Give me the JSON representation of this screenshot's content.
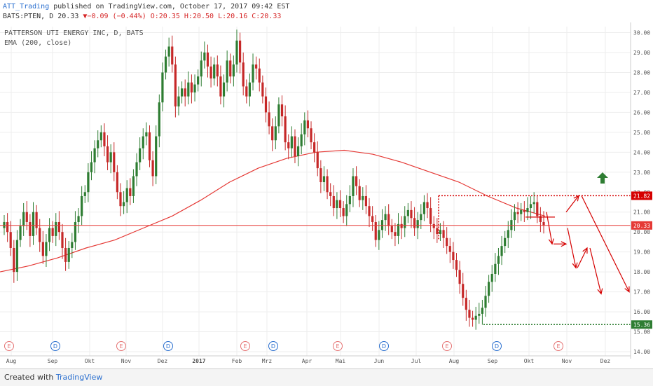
{
  "header": {
    "author": "ATT_Trading",
    "published": "published on TradingView.com, October 17, 2017 09:42 EST",
    "symbol_line": "BATS:PTEN, D 20.33",
    "change": "▼−0.09 (−0.44%)",
    "ohlc": "O:20.35 H:20.50 L:20.16 C:20.33"
  },
  "footer": {
    "created_with": "Created with",
    "brand": "TradingView"
  },
  "colors": {
    "up": "#2e7d32",
    "down": "#c62828",
    "ema": "#e53935",
    "grid": "#eeeeee",
    "annot": "#d50000",
    "arrow_up": "#2e7d32"
  },
  "chart_data": {
    "type": "candlestick",
    "title": "PATTERSON UTI ENERGY INC, D, BATS",
    "indicator": "EMA (200, close)",
    "x_labels": [
      "Aug",
      "Sep",
      "Okt",
      "Nov",
      "Dez",
      "2017",
      "Feb",
      "Mrz",
      "Apr",
      "Mai",
      "Jun",
      "Jul",
      "Aug",
      "Sep",
      "Okt",
      "Nov",
      "Dez"
    ],
    "y_ticks": [
      "30.00",
      "29.00",
      "28.00",
      "27.00",
      "26.00",
      "25.00",
      "24.00",
      "23.00",
      "22.00",
      "21.00",
      "20.00",
      "19.00",
      "18.00",
      "17.00",
      "16.00",
      "15.00",
      "14.00"
    ],
    "ylim": [
      14,
      30.3
    ],
    "price_labels": {
      "resistance": "21.82",
      "last": "20.33",
      "support": "15.36"
    },
    "levels": {
      "resistance": 21.82,
      "last": 20.33,
      "support": 15.36
    },
    "closes": [
      20.5,
      20.0,
      19.2,
      18.0,
      19.6,
      20.3,
      21.0,
      20.5,
      19.8,
      21.0,
      20.2,
      19.5,
      18.8,
      19.5,
      20.2,
      19.8,
      20.5,
      20.0,
      19.2,
      18.5,
      19.2,
      19.5,
      20.5,
      20.8,
      21.8,
      22.0,
      23.0,
      23.5,
      24.2,
      24.6,
      25.0,
      24.3,
      23.5,
      24.0,
      23.0,
      22.0,
      21.3,
      21.5,
      22.2,
      21.8,
      22.8,
      23.5,
      24.2,
      24.8,
      25.0,
      23.6,
      22.8,
      24.8,
      26.5,
      28.0,
      28.8,
      29.3,
      28.4,
      26.3,
      26.8,
      27.2,
      26.8,
      27.5,
      27.0,
      27.4,
      27.8,
      28.6,
      29.0,
      28.3,
      27.7,
      28.4,
      27.8,
      26.8,
      27.5,
      28.6,
      27.8,
      28.4,
      29.6,
      28.5,
      27.3,
      26.8,
      27.5,
      28.4,
      28.2,
      27.5,
      26.8,
      26.0,
      25.3,
      24.6,
      25.3,
      26.4,
      25.8,
      24.5,
      24.2,
      24.8,
      23.8,
      24.3,
      24.9,
      25.6,
      25.2,
      24.5,
      24.0,
      23.2,
      22.5,
      22.8,
      22.0,
      21.8,
      21.2,
      21.6,
      21.2,
      20.8,
      21.4,
      21.8,
      22.8,
      22.3,
      21.6,
      21.8,
      21.3,
      20.8,
      20.5,
      19.6,
      20.1,
      20.6,
      20.9,
      20.3,
      20.0,
      19.8,
      20.4,
      20.2,
      20.8,
      21.1,
      20.7,
      20.2,
      20.6,
      20.9,
      21.5,
      21.2,
      20.4,
      20.2,
      19.9,
      20.1,
      19.7,
      19.3,
      19.0,
      18.6,
      18.1,
      17.4,
      16.7,
      16.1,
      15.7,
      15.6,
      15.8,
      15.9,
      16.2,
      16.8,
      17.5,
      17.9,
      18.4,
      18.8,
      19.3,
      19.7,
      20.1,
      20.6,
      21.0,
      20.9,
      21.1,
      21.0,
      21.2,
      21.4,
      21.5,
      20.8,
      20.5,
      20.33
    ],
    "ema_points": [
      18.0,
      18.3,
      18.7,
      19.2,
      19.6,
      20.2,
      20.8,
      21.6,
      22.5,
      23.2,
      23.7,
      24.0,
      24.1,
      23.9,
      23.5,
      23.0,
      22.5,
      21.8,
      21.2,
      20.8
    ],
    "events": [
      "E",
      "D",
      "E",
      "D",
      "E",
      "D",
      "E",
      "D",
      "E",
      "D",
      "E"
    ],
    "projection": [
      [
        21.0,
        19.4
      ],
      [
        19.4,
        21.82
      ],
      [
        21.82,
        17.0
      ]
    ],
    "projection_left": [
      [
        20.2,
        18.2
      ],
      [
        18.2,
        19.2
      ],
      [
        19.2,
        16.9
      ]
    ]
  }
}
